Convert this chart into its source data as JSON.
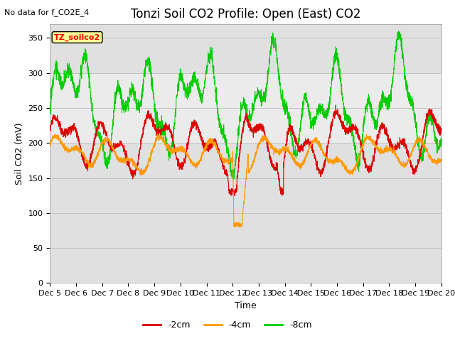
{
  "title": "Tonzi Soil CO2 Profile: Open (East) CO2",
  "no_data_text": "No data for f_CO2E_4",
  "ylabel": "Soil CO2 (mV)",
  "xlabel": "Time",
  "ylim": [
    0,
    370
  ],
  "xlim": [
    0,
    15
  ],
  "yticks": [
    0,
    50,
    100,
    150,
    200,
    250,
    300,
    350
  ],
  "xtick_labels": [
    "Dec 5",
    "Dec 6",
    "Dec 7",
    "Dec 8",
    "Dec 9",
    "Dec 10",
    "Dec 11",
    "Dec 12",
    "Dec 13",
    "Dec 14",
    "Dec 15",
    "Dec 16",
    "Dec 17",
    "Dec 18",
    "Dec 19",
    "Dec 20"
  ],
  "shade_upper_color": "#e8e8e8",
  "shade_lower_color": "#d8d8d8",
  "shade_mid_ymin": 200,
  "shade_mid_ymax": 300,
  "line_colors": [
    "#dd0000",
    "#ff9900",
    "#00cc00"
  ],
  "line_labels": [
    "-2cm",
    "-4cm",
    "-8cm"
  ],
  "legend_box_color": "#ffff99",
  "legend_box_text": "TZ_soilco2",
  "background_color": "#ffffff",
  "grid_color": "#aaaaaa",
  "title_fontsize": 12,
  "axis_fontsize": 9,
  "tick_fontsize": 8
}
